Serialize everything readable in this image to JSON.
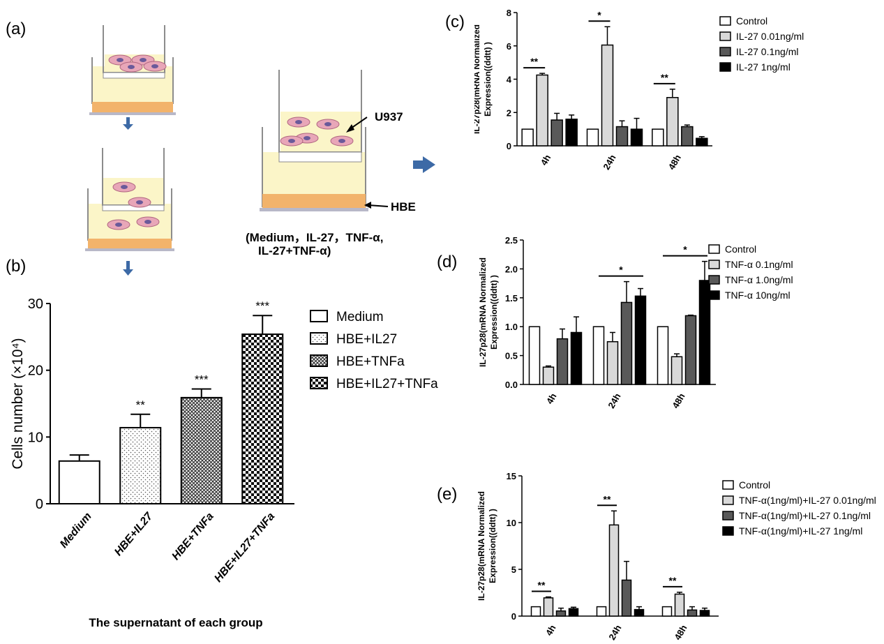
{
  "panels": {
    "a": "(a)",
    "b": "(b)",
    "c": "(c)",
    "d": "(d)",
    "e": "(e)"
  },
  "diagram": {
    "cell_label_top": "U937",
    "cell_label_bottom": "HBE",
    "conditions_line1": "(Medium，IL-27，TNF-α,",
    "conditions_line2": "IL-27+TNF-α)"
  },
  "colors": {
    "white": "#ffffff",
    "light_gray": "#d9d9d9",
    "dark_gray": "#595959",
    "black": "#000000",
    "arrow_blue": "#3d6aa6",
    "culture_yellow": "#fbf5c8",
    "cell_pink": "#e8a6b8",
    "insert_gray": "#8c8c8c",
    "hbe_orange": "#f2b36b"
  },
  "chart_data": [
    {
      "id": "b",
      "type": "bar",
      "categories": [
        "Medium",
        "HBE+IL27",
        "HBE+TNFa",
        "HBE+IL27+TNFa"
      ],
      "values": [
        6.4,
        11.4,
        15.9,
        25.4
      ],
      "errors": [
        0.9,
        2.0,
        1.3,
        2.8
      ],
      "significance": [
        "",
        "**",
        "***",
        "***"
      ],
      "legend": [
        "Medium",
        "HBE+IL27",
        "HBE+TNFa",
        "HBE+IL27+TNFa"
      ],
      "patterns": [
        "white",
        "dots",
        "crosshatch",
        "checker"
      ],
      "ylabel": "Cells number (×10⁴)",
      "xlabel": "The supernatant of each group",
      "ylim": [
        0,
        30
      ],
      "yticks": [
        0,
        10,
        20,
        30
      ],
      "legend_position": "right"
    },
    {
      "id": "c",
      "type": "bar",
      "categories": [
        "4h",
        "24h",
        "48h"
      ],
      "series": [
        {
          "name": "Control",
          "values": [
            1.0,
            1.0,
            1.0
          ],
          "errors": [
            0,
            0,
            0
          ],
          "fill": "white"
        },
        {
          "name": "IL-27 0.01ng/ml",
          "values": [
            4.25,
            6.05,
            2.9
          ],
          "errors": [
            0.1,
            1.1,
            0.5
          ],
          "fill": "light_gray"
        },
        {
          "name": "IL-27 0.1ng/ml",
          "values": [
            1.55,
            1.15,
            1.15
          ],
          "errors": [
            0.4,
            0.35,
            0.1
          ],
          "fill": "dark_gray"
        },
        {
          "name": "IL-27 1ng/ml",
          "values": [
            1.6,
            1.0,
            0.45
          ],
          "errors": [
            0.25,
            0.65,
            0.1
          ],
          "fill": "black"
        }
      ],
      "significance": [
        {
          "category": 0,
          "label": "**"
        },
        {
          "category": 1,
          "label": "*"
        },
        {
          "category": 2,
          "label": "**"
        }
      ],
      "ylabel_line1": "IL-27p28(mRNA Normalized",
      "ylabel_line2": "Expression((ddtt) )",
      "ylim": [
        0,
        8
      ],
      "yticks": [
        0,
        2,
        4,
        6,
        8
      ],
      "legend_position": "right"
    },
    {
      "id": "d",
      "type": "bar",
      "categories": [
        "4h",
        "24h",
        "48h"
      ],
      "series": [
        {
          "name": "Control",
          "values": [
            1.0,
            1.0,
            1.0
          ],
          "errors": [
            0,
            0,
            0
          ],
          "fill": "white"
        },
        {
          "name": "TNF-α 0.1ng/ml",
          "values": [
            0.3,
            0.74,
            0.48
          ],
          "errors": [
            0.02,
            0.16,
            0.05
          ],
          "fill": "light_gray"
        },
        {
          "name": "TNF-α 1.0ng/ml",
          "values": [
            0.79,
            1.42,
            1.19
          ],
          "errors": [
            0.17,
            0.36,
            0.01
          ],
          "fill": "dark_gray"
        },
        {
          "name": "TNF-α 10ng/ml",
          "values": [
            0.9,
            1.53,
            1.8
          ],
          "errors": [
            0.27,
            0.13,
            0.33
          ],
          "fill": "black"
        }
      ],
      "significance": [
        {
          "category": 1,
          "label": "*"
        },
        {
          "category": 2,
          "label": "*"
        }
      ],
      "ylabel_line1": "IL-27p28(mRNA Normalized",
      "ylabel_line2": "Expression((ddtt) )",
      "ylim": [
        0,
        2.5
      ],
      "yticks": [
        "0.0",
        "0.5",
        "1.0",
        "1.5",
        "2.0",
        "2.5"
      ],
      "legend_position": "right"
    },
    {
      "id": "e",
      "type": "bar",
      "categories": [
        "4h",
        "24h",
        "48h"
      ],
      "series": [
        {
          "name": "Control",
          "values": [
            1.0,
            1.0,
            1.0
          ],
          "errors": [
            0,
            0,
            0
          ],
          "fill": "white"
        },
        {
          "name": "TNF-α(1ng/ml)+IL-27 0.01ng/ml",
          "values": [
            1.95,
            9.75,
            2.35
          ],
          "errors": [
            0.1,
            1.5,
            0.2
          ],
          "fill": "light_gray"
        },
        {
          "name": "TNF-α(1ng/ml)+IL-27 0.1ng/ml",
          "values": [
            0.55,
            3.85,
            0.65
          ],
          "errors": [
            0.3,
            2.0,
            0.35
          ],
          "fill": "dark_gray"
        },
        {
          "name": "TNF-α(1ng/ml)+IL-27 1ng/ml",
          "values": [
            0.8,
            0.7,
            0.6
          ],
          "errors": [
            0.15,
            0.3,
            0.25
          ],
          "fill": "black"
        }
      ],
      "significance": [
        {
          "category": 0,
          "label": "**"
        },
        {
          "category": 1,
          "label": "**"
        },
        {
          "category": 2,
          "label": "**"
        }
      ],
      "ylabel_line1": "IL-27p28(mRNA Normalized",
      "ylabel_line2": "Expression((ddtt) )",
      "ylim": [
        0,
        15
      ],
      "yticks": [
        0,
        5,
        10,
        15
      ],
      "legend_position": "right"
    }
  ]
}
